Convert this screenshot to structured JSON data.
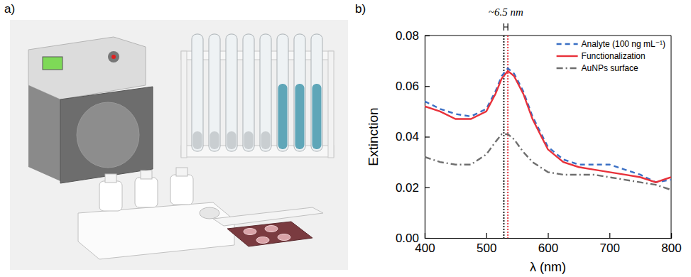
{
  "figure": {
    "panel_a_label": "a)"
  },
  "chart_data": {
    "type": "line",
    "panel_label": "b)",
    "x_label": "λ (nm)",
    "y_label": "Extinction",
    "x": [
      400,
      425,
      450,
      475,
      500,
      515,
      525,
      535,
      545,
      560,
      575,
      600,
      625,
      650,
      675,
      700,
      725,
      750,
      775,
      800
    ],
    "series": [
      {
        "name": "Analyte (100 ng mL⁻¹)",
        "color": "#3a6fc4",
        "line_style": "dashed",
        "values": [
          0.054,
          0.051,
          0.049,
          0.048,
          0.051,
          0.058,
          0.064,
          0.067,
          0.065,
          0.058,
          0.048,
          0.036,
          0.031,
          0.029,
          0.029,
          0.029,
          0.027,
          0.025,
          0.022,
          0.023
        ]
      },
      {
        "name": "Functionalization",
        "color": "#e8313a",
        "line_style": "solid",
        "values": [
          0.052,
          0.05,
          0.047,
          0.047,
          0.05,
          0.057,
          0.063,
          0.066,
          0.064,
          0.057,
          0.047,
          0.035,
          0.03,
          0.028,
          0.027,
          0.026,
          0.025,
          0.024,
          0.022,
          0.024
        ]
      },
      {
        "name": "AuNPs surface",
        "color": "#6e6e6e",
        "line_style": "dashdot",
        "values": [
          0.032,
          0.03,
          0.029,
          0.029,
          0.033,
          0.038,
          0.041,
          0.041,
          0.039,
          0.034,
          0.03,
          0.026,
          0.025,
          0.025,
          0.025,
          0.024,
          0.023,
          0.022,
          0.021,
          0.019
        ]
      }
    ],
    "vlines": [
      {
        "x": 528.5,
        "color": "#000000",
        "line_style": "dotted"
      },
      {
        "x": 535,
        "color": "#e8313a",
        "line_style": "dotted"
      }
    ],
    "annotation": "~6.5 nm",
    "xlim": [
      400,
      800
    ],
    "xticks": [
      400,
      500,
      600,
      700,
      800
    ],
    "ylim": [
      0,
      0.08
    ],
    "yticks": [
      {
        "value": 0,
        "label": "0.00"
      },
      {
        "value": 0.02,
        "label": "0.02"
      },
      {
        "value": 0.04,
        "label": "0.04"
      },
      {
        "value": 0.06,
        "label": "0.06"
      },
      {
        "value": 0.08,
        "label": "0.08"
      }
    ],
    "legend": "upper right",
    "grid": false
  }
}
